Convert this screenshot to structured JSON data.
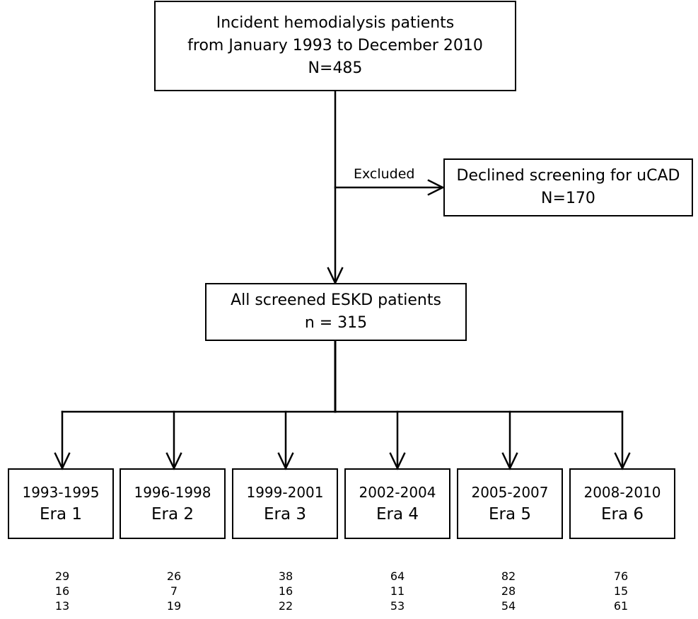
{
  "top_box": {
    "line1": "Incident hemodialysis patients",
    "line2": "from January 1993 to December 2010",
    "line3": "N=485"
  },
  "exclusion": {
    "label": "Excluded",
    "line1": "Declined screening for uCAD",
    "line2": "N=170"
  },
  "screened_box": {
    "line1": "All screened ESKD patients",
    "line2": "n = 315"
  },
  "eras": [
    {
      "years": "1993-1995",
      "name": "Era 1",
      "values": [
        "29",
        "16",
        "13"
      ]
    },
    {
      "years": "1996-1998",
      "name": "Era 2",
      "values": [
        "26",
        "7",
        "19"
      ]
    },
    {
      "years": "1999-2001",
      "name": "Era 3",
      "values": [
        "38",
        "16",
        "22"
      ]
    },
    {
      "years": "2002-2004",
      "name": "Era 4",
      "values": [
        "64",
        "11",
        "53"
      ]
    },
    {
      "years": "2005-2007",
      "name": "Era 5",
      "values": [
        "82",
        "28",
        "54"
      ]
    },
    {
      "years": "2008-2010",
      "name": "Era 6",
      "values": [
        "76",
        "15",
        "61"
      ]
    }
  ],
  "colors": {
    "line": "#000000",
    "background": "#ffffff"
  }
}
